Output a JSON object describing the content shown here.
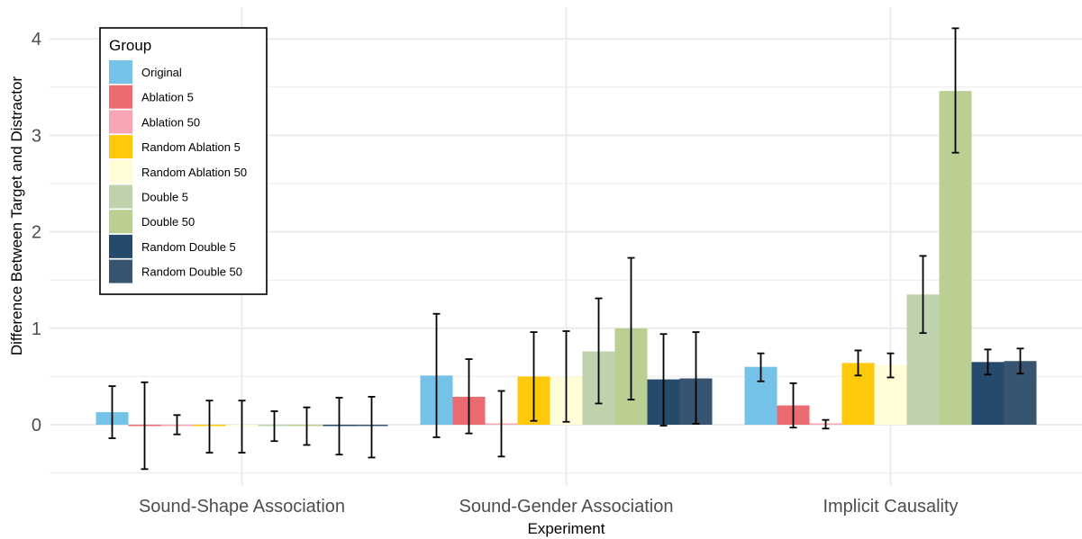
{
  "chart_data": {
    "type": "bar",
    "xlabel": "Experiment",
    "ylabel": "Difference Between Target and Distractor",
    "ylim": [
      -0.5,
      4.2
    ],
    "yticks": [
      0,
      1,
      2,
      3,
      4
    ],
    "grid": true,
    "legend": {
      "title": "Group",
      "position": "top-left"
    },
    "categories": [
      "Sound-Shape Association",
      "Sound-Gender Association",
      "Implicit Causality"
    ],
    "series": [
      {
        "name": "Original",
        "color": "#74C2E7",
        "values": [
          0.13,
          0.51,
          0.6
        ],
        "err_low": [
          -0.14,
          -0.13,
          0.45
        ],
        "err_high": [
          0.4,
          1.15,
          0.74
        ]
      },
      {
        "name": "Ablation 5",
        "color": "#EC6B70",
        "values": [
          -0.005,
          0.29,
          0.2
        ],
        "err_low": [
          -0.46,
          -0.09,
          -0.03
        ],
        "err_high": [
          0.44,
          0.68,
          0.43
        ]
      },
      {
        "name": "Ablation 50",
        "color": "#F8A6B4",
        "values": [
          -0.005,
          0.01,
          0.0
        ],
        "err_low": [
          -0.1,
          -0.33,
          -0.04
        ],
        "err_high": [
          0.1,
          0.35,
          0.05
        ]
      },
      {
        "name": "Random Ablation 5",
        "color": "#FFC90B",
        "values": [
          -0.01,
          0.5,
          0.64
        ],
        "err_low": [
          -0.29,
          0.04,
          0.51
        ],
        "err_high": [
          0.25,
          0.96,
          0.77
        ]
      },
      {
        "name": "Random Ablation 50",
        "color": "#FFFCD8",
        "values": [
          -0.005,
          0.5,
          0.62
        ],
        "err_low": [
          -0.29,
          0.03,
          0.49
        ],
        "err_high": [
          0.25,
          0.97,
          0.74
        ]
      },
      {
        "name": "Double 5",
        "color": "#BED3AD",
        "values": [
          -0.01,
          0.76,
          1.35
        ],
        "err_low": [
          -0.17,
          0.22,
          0.95
        ],
        "err_high": [
          0.14,
          1.31,
          1.75
        ]
      },
      {
        "name": "Double 50",
        "color": "#BCCF93",
        "values": [
          -0.005,
          1.0,
          3.46
        ],
        "err_low": [
          -0.21,
          0.26,
          2.82
        ],
        "err_high": [
          0.18,
          1.73,
          4.11
        ]
      },
      {
        "name": "Random Double 5",
        "color": "#264A6B",
        "values": [
          -0.005,
          0.47,
          0.65
        ],
        "err_low": [
          -0.31,
          -0.01,
          0.52
        ],
        "err_high": [
          0.28,
          0.94,
          0.78
        ]
      },
      {
        "name": "Random Double 50",
        "color": "#375470",
        "values": [
          -0.01,
          0.48,
          0.66
        ],
        "err_low": [
          -0.34,
          0.01,
          0.53
        ],
        "err_high": [
          0.29,
          0.96,
          0.79
        ]
      }
    ]
  }
}
